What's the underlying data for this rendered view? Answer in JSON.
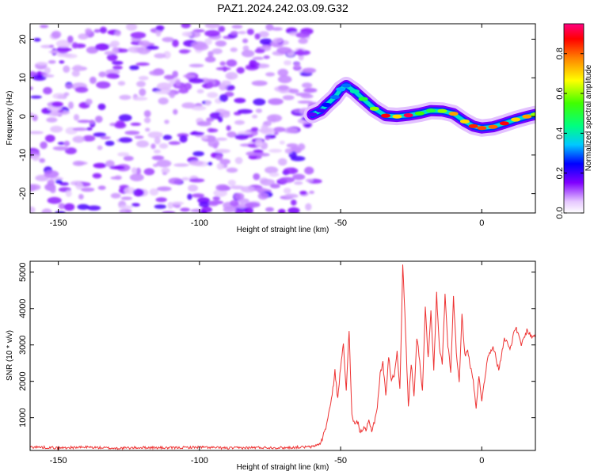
{
  "title": "PAZ1.2024.242.03.09.G32",
  "chart_data": [
    {
      "type": "heatmap",
      "xlabel": "Height of straight line (km)",
      "ylabel": "Frequency (Hz)",
      "xlim": [
        -160,
        19
      ],
      "ylim": [
        -25,
        24
      ],
      "xticks": [
        -150,
        -100,
        -50,
        0
      ],
      "yticks": [
        -20,
        -10,
        0,
        10,
        20
      ],
      "noise_region_x": [
        -160,
        -59
      ],
      "signal_ridge": {
        "x": [
          -60,
          -57,
          -55,
          -52,
          -50,
          -48,
          -45,
          -42,
          -38,
          -34,
          -30,
          -26,
          -22,
          -18,
          -14,
          -10,
          -6,
          -3,
          0,
          4,
          8,
          12,
          16,
          19
        ],
        "y": [
          0.5,
          1.5,
          3,
          5,
          7,
          8,
          6.5,
          4.5,
          2,
          0.2,
          0,
          0.3,
          0.8,
          1.5,
          1.4,
          0.7,
          -1.3,
          -2.5,
          -3,
          -2.7,
          -1.8,
          -0.8,
          0,
          0.5
        ],
        "amplitude": [
          0.18,
          0.2,
          0.25,
          0.3,
          0.33,
          0.3,
          0.4,
          0.5,
          0.6,
          0.88,
          0.7,
          0.92,
          0.55,
          0.5,
          0.6,
          0.75,
          0.7,
          0.85,
          0.82,
          0.8,
          0.88,
          0.7,
          0.75,
          0.6
        ]
      },
      "colorbar": {
        "label": "Normalized spectral amplitude",
        "ticks": [
          "0.0",
          "0.2",
          "0.4",
          "0.6",
          "0.8"
        ],
        "range": [
          0,
          0.95
        ]
      }
    },
    {
      "type": "line",
      "xlabel": "Height of straight line (km)",
      "ylabel": "SNR (10 * v/v)",
      "xlim": [
        -160,
        19
      ],
      "ylim": [
        100,
        5300
      ],
      "xticks": [
        -150,
        -100,
        -50,
        0
      ],
      "yticks": [
        1000,
        2000,
        3000,
        4000,
        5000
      ],
      "color": "#ee3333",
      "series": [
        {
          "x": [
            -160,
            -150,
            -140,
            -130,
            -120,
            -110,
            -100,
            -90,
            -80,
            -70,
            -60,
            -57,
            -55,
            -53,
            -52,
            -51,
            -50,
            -49,
            -48,
            -47,
            -46,
            -45,
            -44,
            -43,
            -42,
            -41,
            -40,
            -39,
            -38,
            -37,
            -36,
            -35,
            -34,
            -33,
            -32,
            -31,
            -30,
            -29,
            -28.5,
            -28,
            -27,
            -26,
            -25,
            -24,
            -23,
            -22,
            -21,
            -20,
            -19,
            -18,
            -17,
            -16,
            -15,
            -14,
            -13,
            -12,
            -11,
            -10,
            -9,
            -8,
            -7,
            -6,
            -5,
            -4,
            -3,
            -2,
            -1,
            0,
            2,
            4,
            6,
            8,
            10,
            12,
            14,
            16,
            18,
            19
          ],
          "y": [
            200,
            170,
            190,
            160,
            180,
            170,
            190,
            165,
            180,
            175,
            200,
            300,
            800,
            1600,
            2300,
            1500,
            2400,
            3100,
            1700,
            3400,
            1100,
            800,
            900,
            600,
            700,
            650,
            900,
            650,
            900,
            1300,
            2200,
            2500,
            1600,
            2700,
            2000,
            2200,
            2800,
            1800,
            3400,
            5200,
            3400,
            1300,
            2500,
            1600,
            3200,
            2600,
            1700,
            4100,
            2600,
            3900,
            2300,
            4400,
            2900,
            2500,
            4400,
            3000,
            2300,
            4300,
            2800,
            2000,
            3800,
            2700,
            2900,
            2400,
            2000,
            1300,
            2100,
            1500,
            2600,
            3000,
            2300,
            3200,
            2900,
            3500,
            3000,
            3400,
            3200,
            3300
          ]
        }
      ]
    }
  ]
}
